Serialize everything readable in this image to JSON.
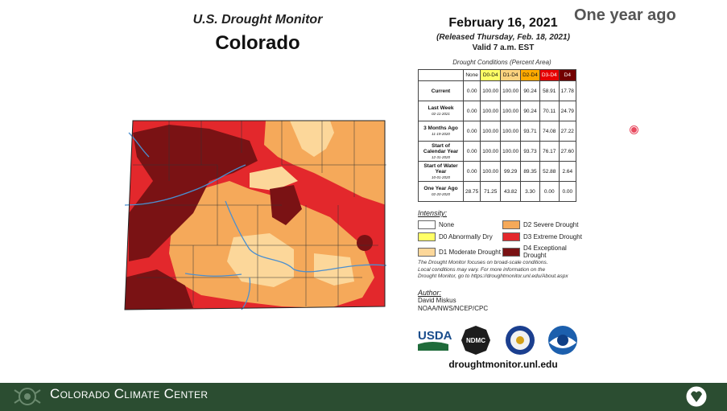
{
  "header": {
    "subtitle": "U.S. Drought Monitor",
    "state": "Colorado",
    "date": "February 16, 2021",
    "released": "(Released Thursday, Feb. 18, 2021)",
    "valid": "Valid 7 a.m. EST"
  },
  "overlay_label": "One year ago",
  "table": {
    "caption": "Drought Conditions (Percent Area)",
    "columns": [
      {
        "label": "None",
        "color": "#ffffff"
      },
      {
        "label": "D0-D4",
        "color": "#ffff66"
      },
      {
        "label": "D1-D4",
        "color": "#fcd37f"
      },
      {
        "label": "D2-D4",
        "color": "#ffaa00"
      },
      {
        "label": "D3-D4",
        "color": "#e60000"
      },
      {
        "label": "D4",
        "color": "#730000"
      }
    ],
    "rows": [
      {
        "label": "Current",
        "date": "",
        "values": [
          "0.00",
          "100.00",
          "100.00",
          "90.24",
          "58.91",
          "17.78"
        ]
      },
      {
        "label": "Last Week",
        "date": "02-11-2021",
        "values": [
          "0.00",
          "100.00",
          "100.00",
          "90.24",
          "70.11",
          "24.79"
        ]
      },
      {
        "label": "3 Months Ago",
        "date": "11-19-2020",
        "values": [
          "0.00",
          "100.00",
          "100.00",
          "93.71",
          "74.08",
          "27.22"
        ]
      },
      {
        "label": "Start of Calendar Year",
        "date": "12-31-2020",
        "values": [
          "0.00",
          "100.00",
          "100.00",
          "93.73",
          "76.17",
          "27.60"
        ]
      },
      {
        "label": "Start of Water Year",
        "date": "10-01-2020",
        "values": [
          "0.00",
          "100.00",
          "99.29",
          "89.35",
          "52.88",
          "2.64"
        ]
      },
      {
        "label": "One Year Ago",
        "date": "02-20-2020",
        "values": [
          "28.75",
          "71.25",
          "43.82",
          "3.30",
          "0.00",
          "0.00"
        ]
      }
    ]
  },
  "legend": {
    "title": "Intensity:",
    "items": [
      {
        "label": "None",
        "color": "#ffffff"
      },
      {
        "label": "D2 Severe Drought",
        "color": "#f5a95a"
      },
      {
        "label": "D0 Abnormally Dry",
        "color": "#ffff66"
      },
      {
        "label": "D3 Extreme Drought",
        "color": "#e3282c"
      },
      {
        "label": "D1 Moderate Drought",
        "color": "#fcd79a"
      },
      {
        "label": "D4 Exceptional Drought",
        "color": "#7a1214"
      }
    ]
  },
  "note": {
    "line1": "The Drought Monitor focuses on broad-scale conditions.",
    "line2": "Local conditions may vary. For more information on the",
    "line3": "Drought Monitor, go to https://droughtmonitor.unl.edu/About.aspx"
  },
  "author": {
    "label": "Author:",
    "name": "David Miskus",
    "org": "NOAA/NWS/NCEP/CPC"
  },
  "logos": {
    "usda": "USDA",
    "ndmc": "NDMC"
  },
  "url": "droughtmonitor.unl.edu",
  "footer": {
    "name": "Colorado Climate Center"
  },
  "map_colors": {
    "d1": "#fcd79a",
    "d2": "#f5a95a",
    "d3": "#e3282c",
    "d4": "#7a1214",
    "rivers": "#4a8fd0",
    "counties": "#333333"
  }
}
